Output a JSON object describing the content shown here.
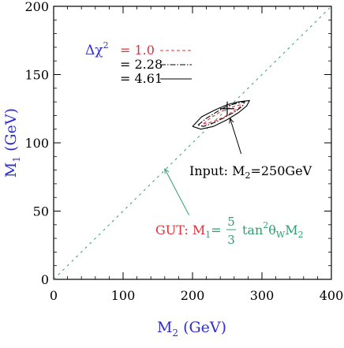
{
  "chart_data": {
    "type": "scatter",
    "xlabel_main": "M",
    "xlabel_sub": "2",
    "xlabel_unit": " (GeV)",
    "ylabel_main": "M",
    "ylabel_sub": "1",
    "ylabel_unit": "(GeV)",
    "xlim": [
      0,
      400
    ],
    "ylim": [
      0,
      200
    ],
    "xticks": [
      0,
      100,
      200,
      300,
      400
    ],
    "yticks": [
      0,
      50,
      100,
      150,
      200
    ],
    "xtick_labels": [
      "0",
      "100",
      "200",
      "300",
      "400"
    ],
    "ytick_labels": [
      "0",
      "50",
      "100",
      "150",
      "200"
    ],
    "grid": false,
    "legend": {
      "placement": "top-left",
      "symbol": "Δχ",
      "superscript": "2",
      "entries": [
        {
          "label": "= 1.0",
          "style": "dashed",
          "color": "#e0303a"
        },
        {
          "label": "= 2.28",
          "style": "dashdot",
          "color": "#000000"
        },
        {
          "label": "= 4.61",
          "style": "solid",
          "color": "#000000"
        }
      ]
    },
    "gut_line": {
      "x": [
        0,
        400
      ],
      "y": [
        0,
        200
      ],
      "color": "#2e9e6e"
    },
    "input_point": {
      "x": 250,
      "y": 125
    },
    "contours": [
      {
        "delta_chi2": "1.0",
        "style": "dashed",
        "color": "#e0303a",
        "points": [
          [
            216,
            114
          ],
          [
            225,
            118
          ],
          [
            238,
            122
          ],
          [
            250,
            125
          ],
          [
            262,
            127
          ],
          [
            270,
            128
          ],
          [
            268,
            126
          ],
          [
            258,
            123
          ],
          [
            246,
            119
          ],
          [
            232,
            116
          ],
          [
            220,
            114
          ],
          [
            216,
            114
          ]
        ]
      },
      {
        "delta_chi2": "2.28",
        "style": "dashdot",
        "color": "#000000",
        "points": [
          [
            208,
            113
          ],
          [
            220,
            118
          ],
          [
            236,
            123
          ],
          [
            250,
            127
          ],
          [
            264,
            129
          ],
          [
            275,
            130
          ],
          [
            272,
            127
          ],
          [
            262,
            123
          ],
          [
            248,
            119
          ],
          [
            232,
            115
          ],
          [
            216,
            112
          ],
          [
            208,
            113
          ]
        ]
      },
      {
        "delta_chi2": "4.61",
        "style": "solid",
        "color": "#000000",
        "points": [
          [
            200,
            112
          ],
          [
            213,
            119
          ],
          [
            232,
            124
          ],
          [
            250,
            128
          ],
          [
            266,
            130
          ],
          [
            282,
            131
          ],
          [
            278,
            127
          ],
          [
            266,
            122
          ],
          [
            250,
            117
          ],
          [
            230,
            112
          ],
          [
            212,
            110
          ],
          [
            200,
            112
          ]
        ]
      }
    ],
    "annotations": [
      {
        "id": "input",
        "text": "Input: M",
        "sub": "2",
        "rest": "=250GeV",
        "color": "#000000",
        "arrow_from": [
          270,
          92
        ],
        "arrow_to": [
          254,
          118
        ]
      },
      {
        "id": "gut",
        "prefix": "GUT:  M",
        "prefix_sub": "1",
        "eq": "=",
        "frac_num": "5",
        "frac_den": "3",
        "tan": "tan",
        "tan_sup": "2",
        "theta": "θ",
        "theta_sub": "W",
        "tail": "M",
        "tail_sub": "2",
        "color_prefix": "#e0303a",
        "color_rest": "#2e9e6e",
        "arrow_from": [
          195,
          47
        ],
        "arrow_to": [
          160,
          81
        ]
      }
    ]
  }
}
